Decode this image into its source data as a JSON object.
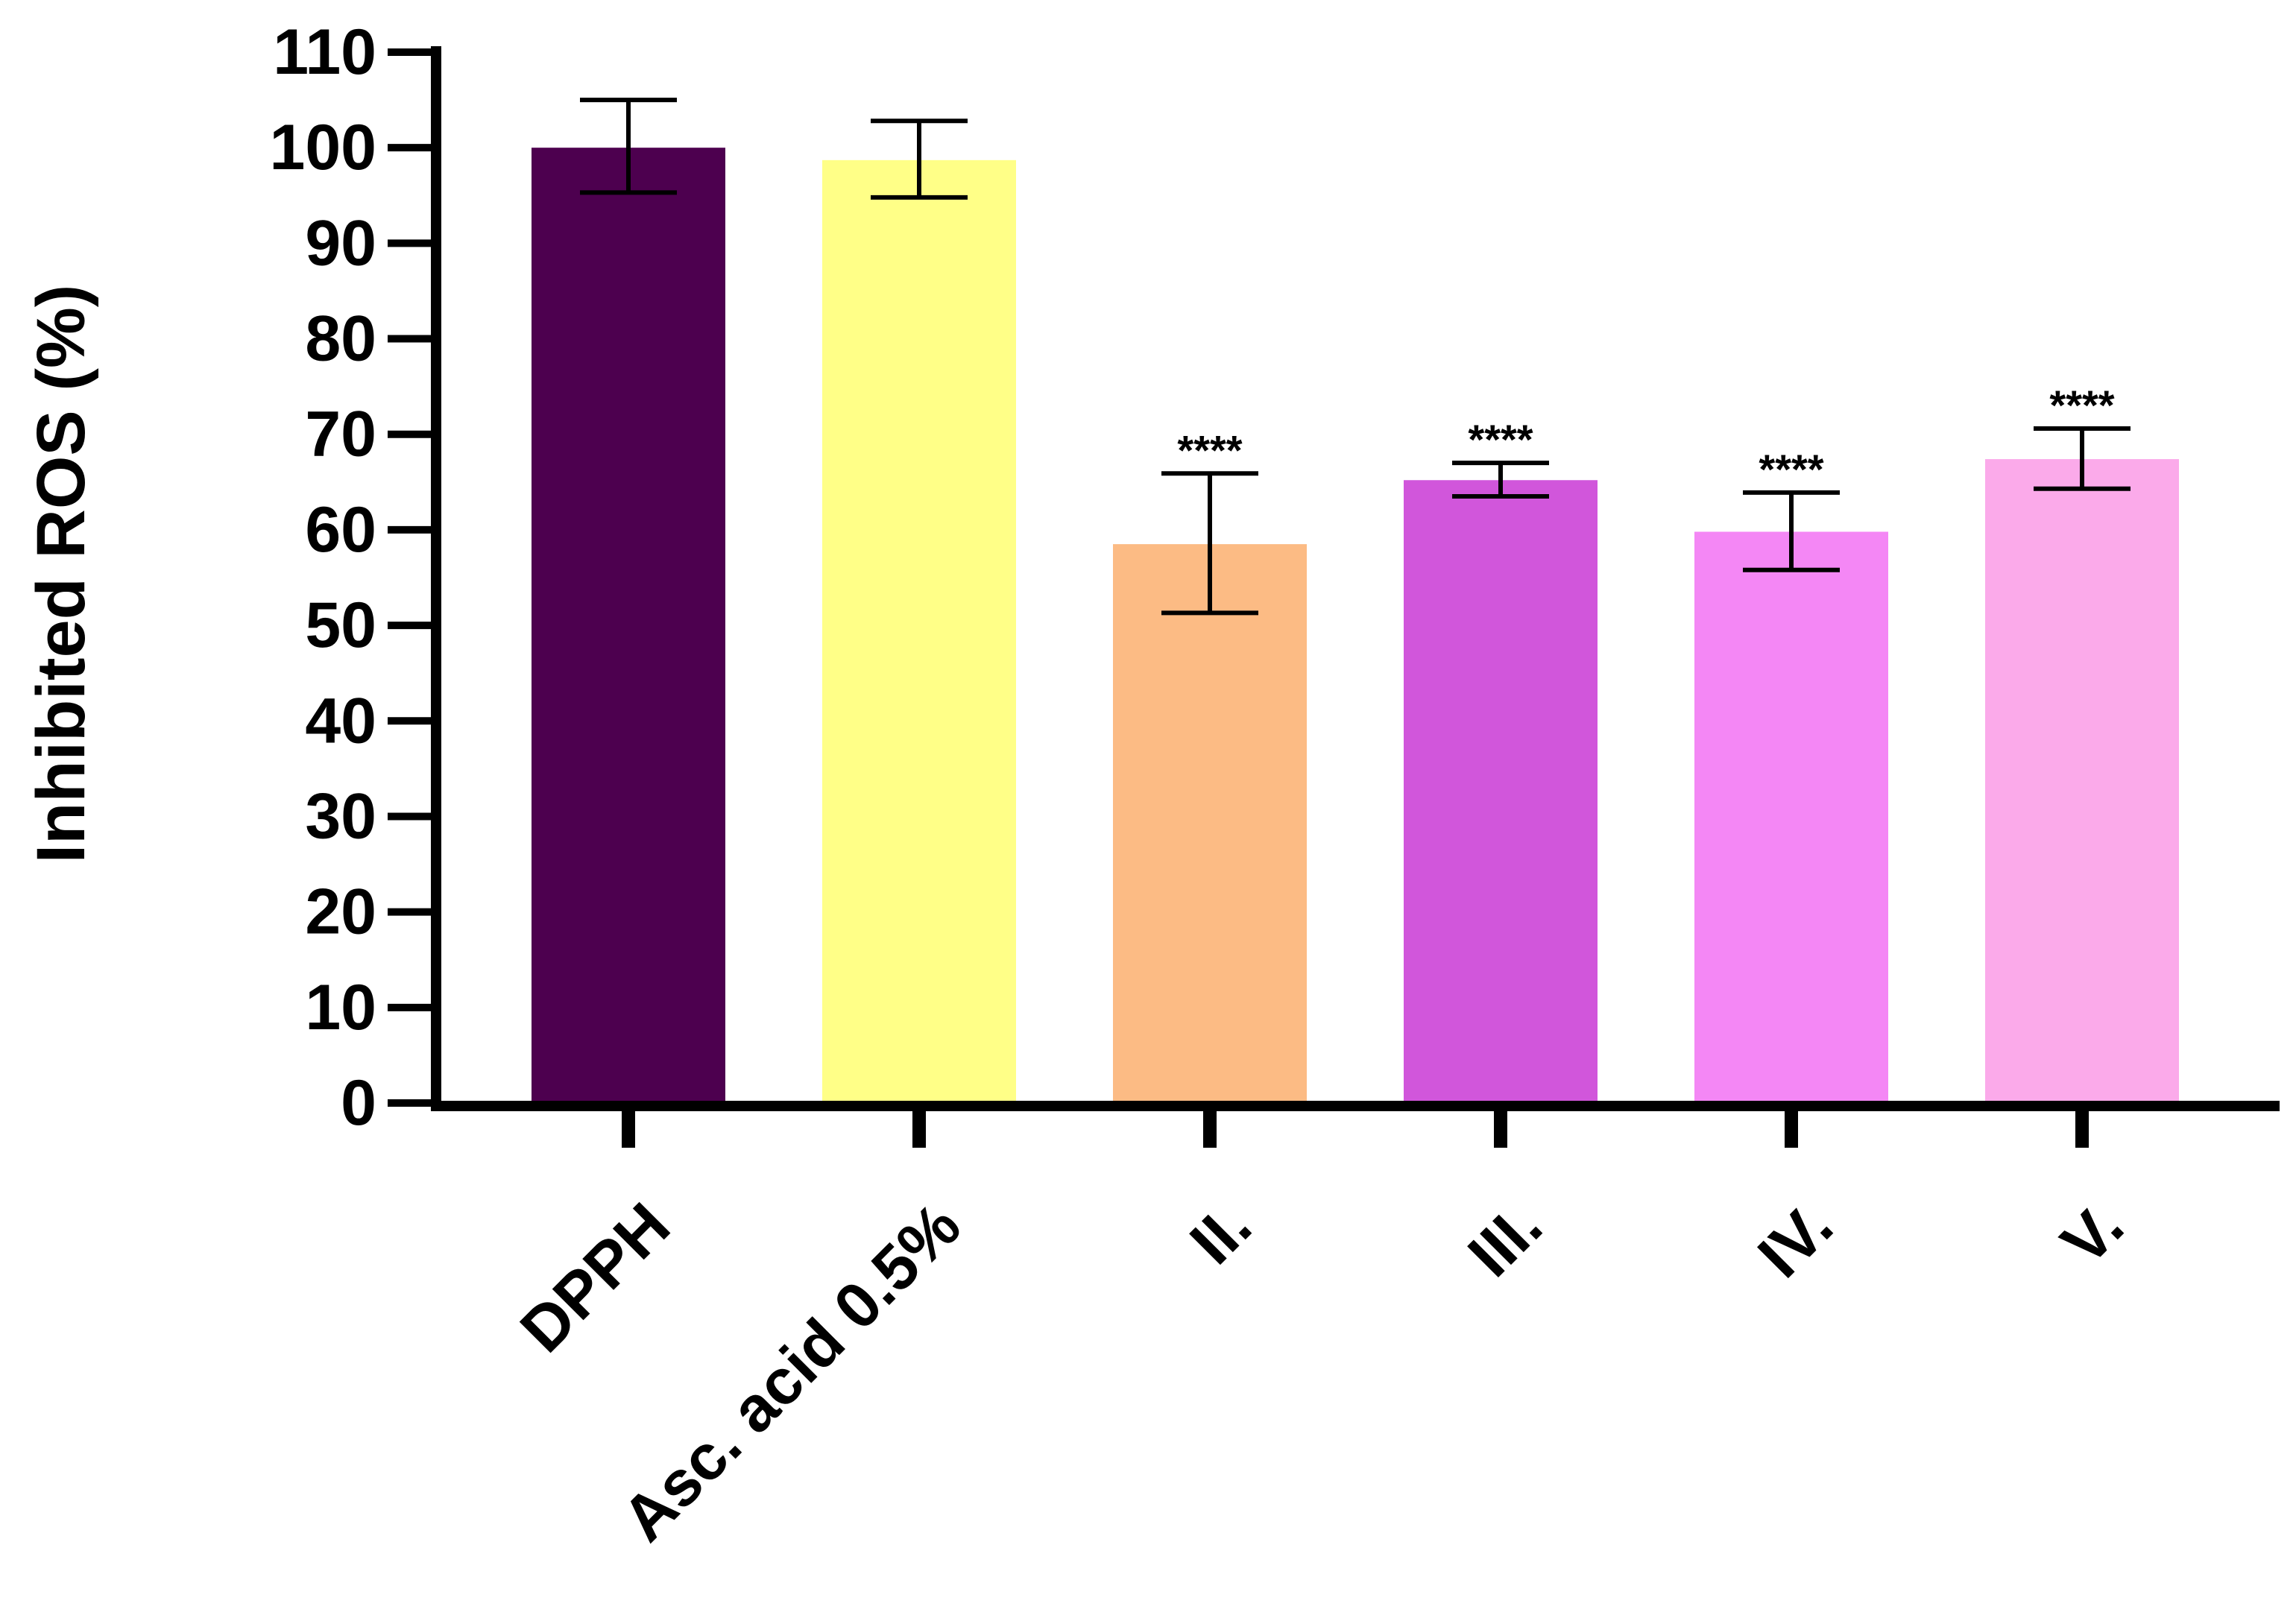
{
  "chart_data": {
    "type": "bar",
    "title": "",
    "xlabel": "",
    "ylabel": "Inhibited ROS (%)",
    "ylim": [
      0,
      110
    ],
    "yticks": [
      0,
      10,
      20,
      30,
      40,
      50,
      60,
      70,
      80,
      90,
      100,
      110
    ],
    "grid": false,
    "legend": "none",
    "categories": [
      "DPPH",
      "Asc. acid 0.5%",
      "II.",
      "III.",
      "IV.",
      "V."
    ],
    "values": [
      100,
      98.7,
      58.5,
      65.2,
      59.8,
      67.4
    ],
    "error_low": [
      95.3,
      94.8,
      51.3,
      63.5,
      55.8,
      64.3
    ],
    "error_high": [
      105.0,
      102.8,
      65.9,
      67.0,
      63.9,
      70.6
    ],
    "colors": [
      "#4d004f",
      "#ffff87",
      "#fcbb84",
      "#d156db",
      "#f487f5",
      "#fbaaea"
    ],
    "significance": [
      "",
      "",
      "****",
      "****",
      "****",
      "****"
    ]
  }
}
